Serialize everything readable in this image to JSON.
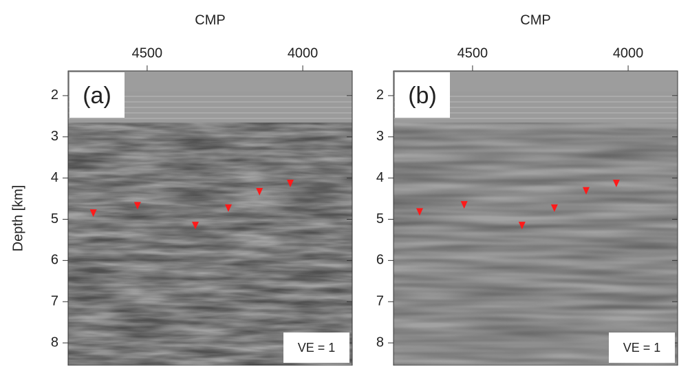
{
  "chart_data": [
    {
      "type": "scatter",
      "panel_label": "(a)",
      "xlabel": "CMP",
      "ylabel": "Depth [km]",
      "annotation": "VE = 1",
      "xlim": [
        4754,
        3841
      ],
      "xticks": [
        4500,
        4000
      ],
      "ylim": [
        1.4,
        8.55
      ],
      "yticks": [
        2,
        3,
        4,
        5,
        6,
        7,
        8
      ],
      "series": [
        {
          "color": "#ff1a1a",
          "x": [
            4673,
            4531,
            4345,
            4239,
            4139,
            4040
          ],
          "values": [
            4.91,
            4.73,
            5.21,
            4.79,
            4.39,
            4.19
          ]
        }
      ]
    },
    {
      "type": "scatter",
      "panel_label": "(b)",
      "xlabel": "CMP",
      "annotation": "VE = 1",
      "xlim": [
        4754,
        3841
      ],
      "xticks": [
        4500,
        4000
      ],
      "ylim": [
        1.4,
        8.55
      ],
      "yticks": [
        2,
        3,
        4,
        5,
        6,
        7,
        8
      ],
      "series": [
        {
          "color": "#ff1a1a",
          "x": [
            4670,
            4527,
            4341,
            4237,
            4135,
            4038
          ],
          "values": [
            4.88,
            4.71,
            5.21,
            4.79,
            4.37,
            4.19
          ]
        }
      ]
    }
  ]
}
